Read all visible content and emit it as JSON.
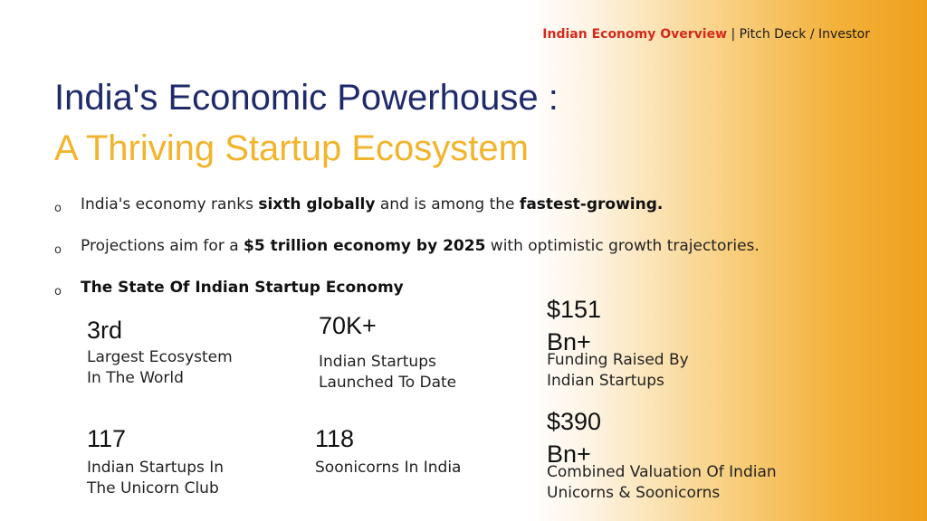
{
  "header": {
    "brand": "Indian Economy Overview",
    "separator": " | ",
    "subtitle": "Pitch Deck / Investor"
  },
  "title": {
    "line1": "India's Economic Powerhouse :",
    "line2": "A Thriving Startup Ecosystem"
  },
  "bullet_marker": "o",
  "bullets": [
    {
      "p1": "India's economy ranks ",
      "b1": "sixth globally",
      "p2": " and is among the ",
      "b2": "fastest-growing."
    },
    {
      "p1": "Projections aim for a ",
      "b1": "$5 trillion economy by 2025",
      "p2": " with optimistic growth trajectories."
    },
    {
      "b1": "The State Of Indian Startup Economy"
    }
  ],
  "stats": [
    {
      "value": "3rd",
      "label_line1": "Largest Ecosystem",
      "label_line2": "In The World"
    },
    {
      "value": "70K+",
      "label_line1": "Indian Startups",
      "label_line2": "Launched To Date"
    },
    {
      "value_line1": "$151",
      "value_line2": "Bn+",
      "label_line1": "Funding Raised By",
      "label_line2": "Indian Startups"
    },
    {
      "value": "117",
      "label_line1": "Indian Startups In",
      "label_line2": "The Unicorn Club"
    },
    {
      "value": "118",
      "label_line1": "Soonicorns In India"
    },
    {
      "value_line1": "$390",
      "value_line2": "Bn+",
      "label_line1": "Combined Valuation Of Indian",
      "label_line2": "Unicorns & Soonicorns"
    }
  ]
}
